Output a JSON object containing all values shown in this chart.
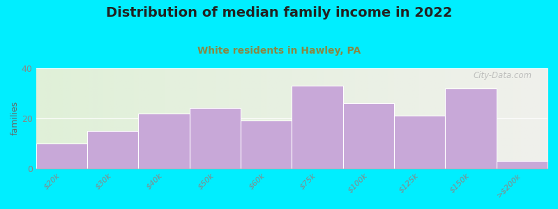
{
  "title": "Distribution of median family income in 2022",
  "subtitle": "White residents in Hawley, PA",
  "categories": [
    "$20k",
    "$30k",
    "$40k",
    "$50k",
    "$60k",
    "$75k",
    "$100k",
    "$125k",
    "$150k",
    ">$200k"
  ],
  "values": [
    10,
    15,
    22,
    24,
    19,
    33,
    26,
    21,
    32,
    3
  ],
  "bar_color": "#c8a8d8",
  "bar_edgecolor": "white",
  "background_outer": "#00eeff",
  "bg_left_color": "#e0f0d8",
  "bg_right_color": "#f0f0ec",
  "ylabel": "families",
  "ylim": [
    0,
    40
  ],
  "yticks": [
    0,
    20,
    40
  ],
  "watermark": "City-Data.com",
  "title_fontsize": 14,
  "subtitle_fontsize": 10,
  "subtitle_color": "#888844",
  "tick_color": "#888888",
  "ylabel_color": "#666666",
  "spine_color": "#aaaaaa"
}
